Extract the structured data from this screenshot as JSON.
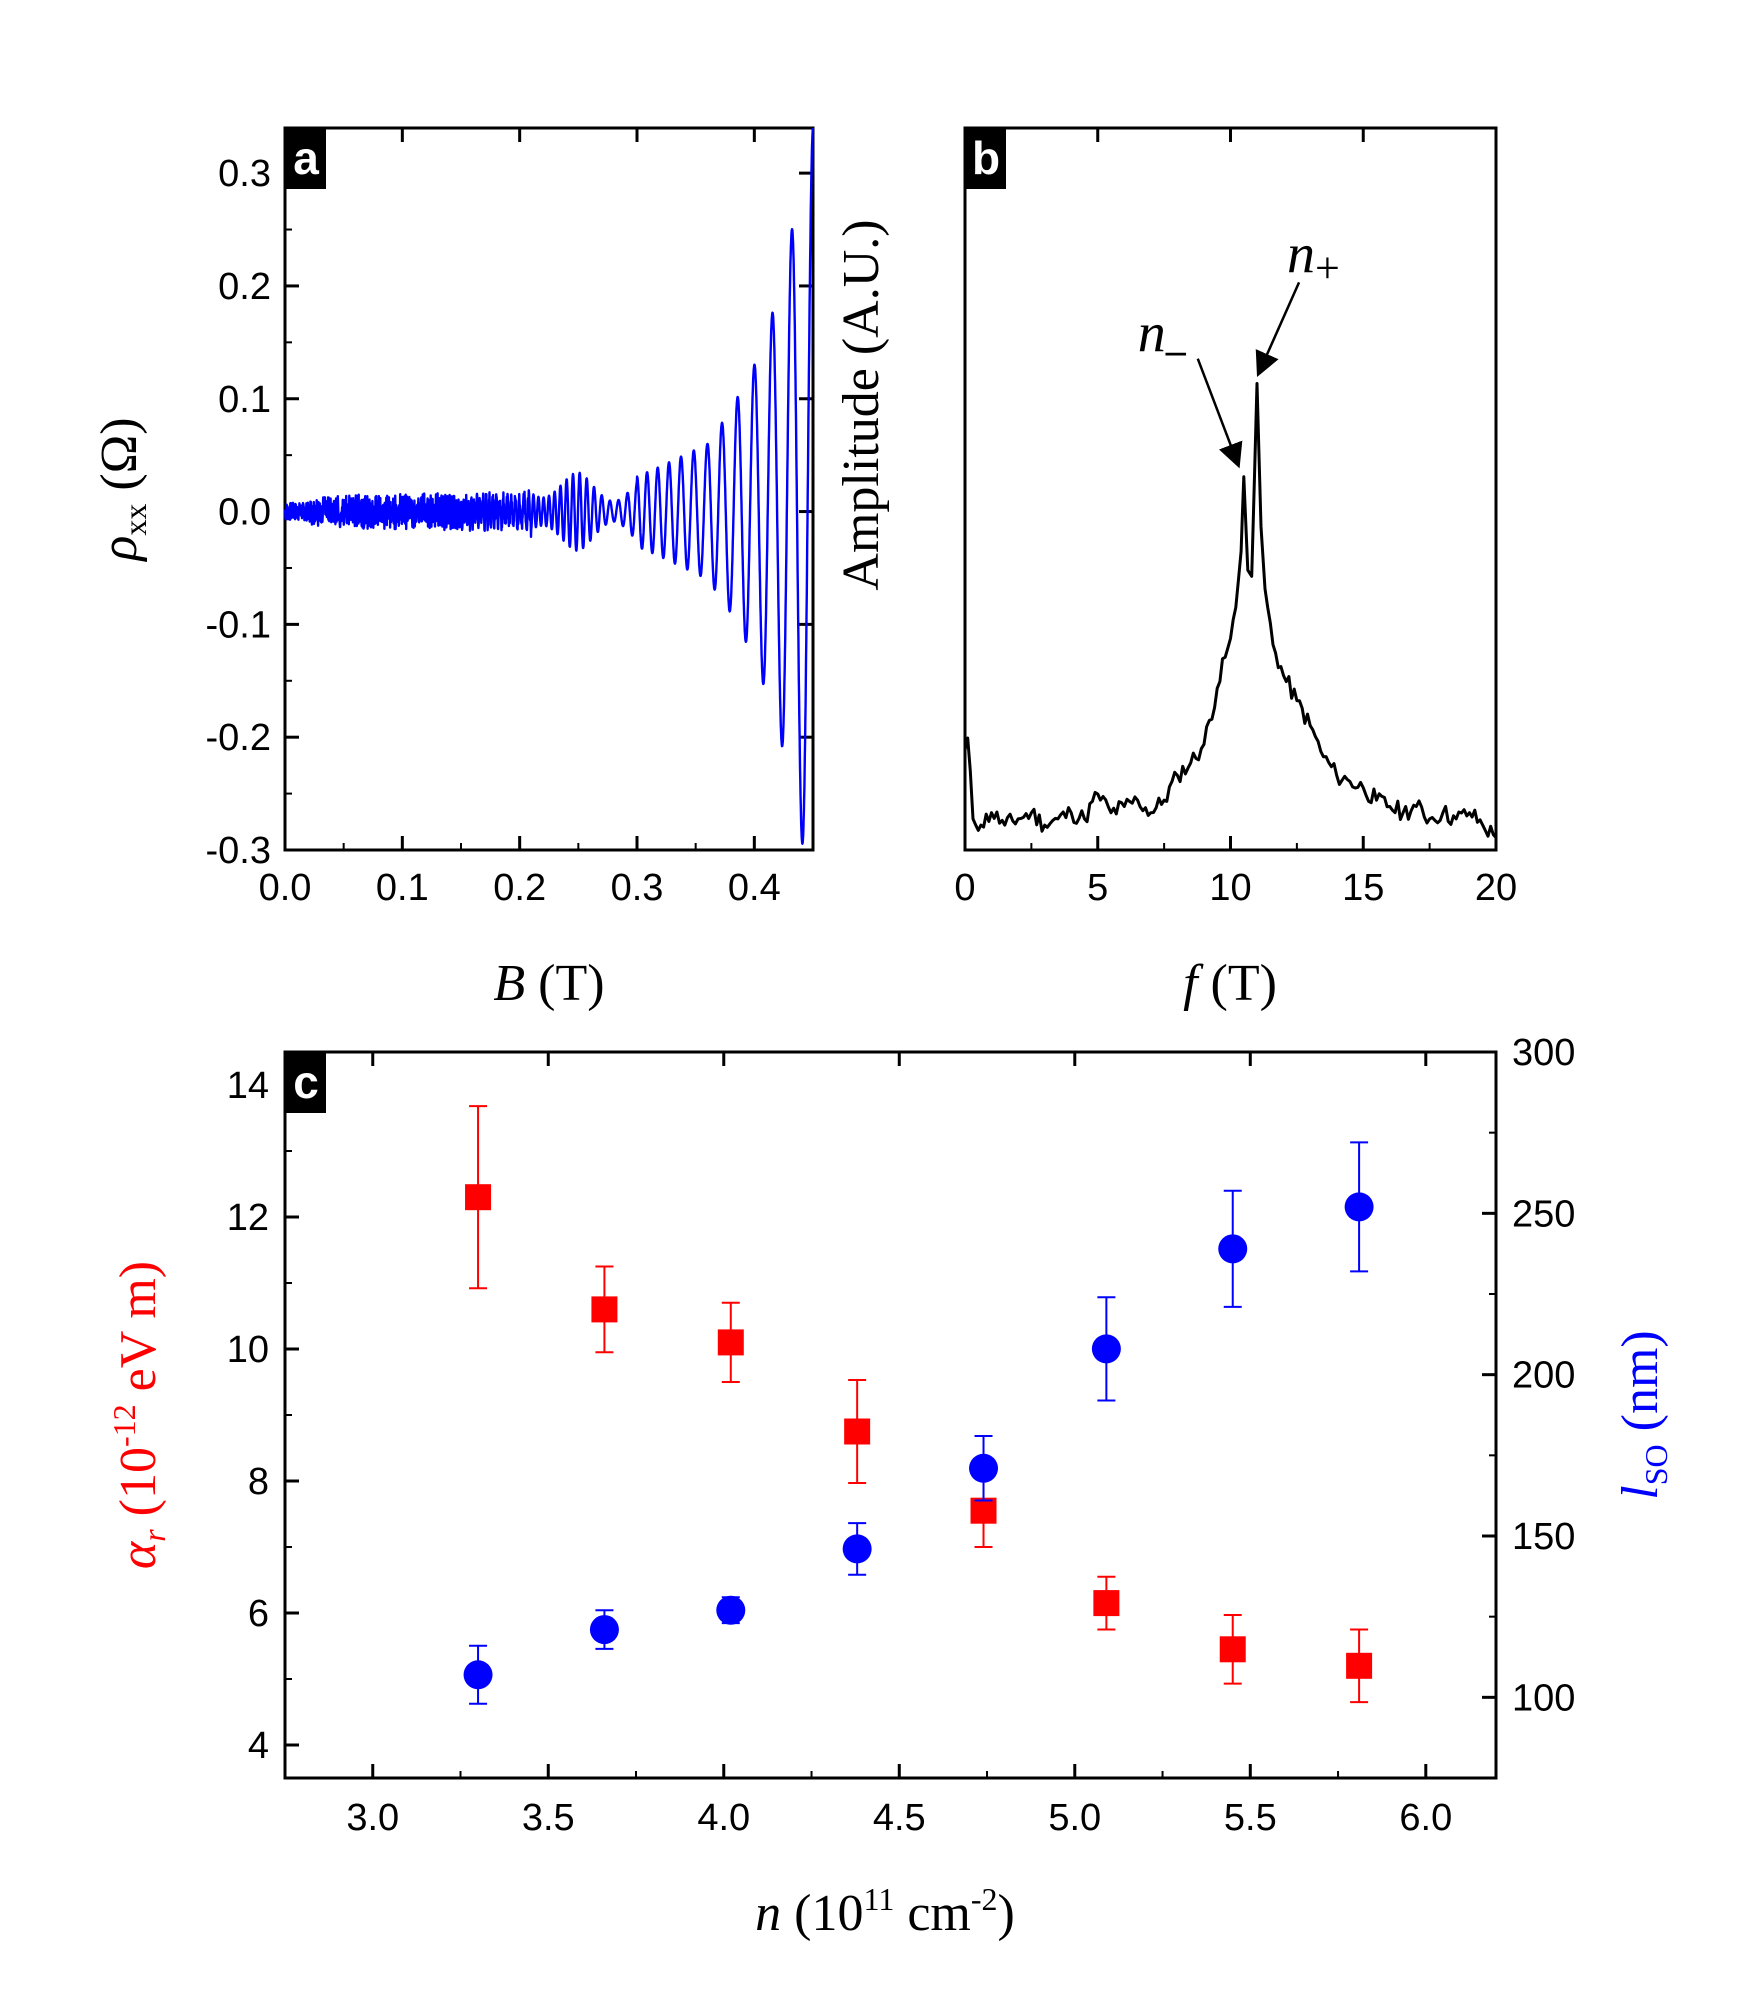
{
  "chart_data": [
    {
      "panel": "a",
      "type": "line",
      "xlabel_symbol": "B",
      "xlabel_unit": "(T)",
      "ylabel_symbol": "ρ",
      "ylabel_sub": "xx",
      "ylabel_unit": "(Ω)",
      "xlim": [
        0.0,
        0.45
      ],
      "ylim": [
        -0.3,
        0.34
      ],
      "xticks": [
        0.0,
        0.1,
        0.2,
        0.3,
        0.4
      ],
      "xtick_labels": [
        "0.0",
        "0.1",
        "0.2",
        "0.3",
        "0.4"
      ],
      "yticks": [
        -0.3,
        -0.2,
        -0.1,
        0.0,
        0.1,
        0.2,
        0.3
      ],
      "ytick_labels": [
        "-0.3",
        "-0.2",
        "-0.1",
        "0.0",
        "0.1",
        "0.2",
        "0.3"
      ],
      "series": [
        {
          "name": "rho_xx",
          "color": "#0000ff",
          "envelope": [
            [
              0.0,
              0.008
            ],
            [
              0.2,
              0.012
            ],
            [
              0.21,
              0.03
            ],
            [
              0.25,
              0.035
            ],
            [
              0.28,
              0.022
            ],
            [
              0.32,
              0.04
            ],
            [
              0.36,
              0.06
            ],
            [
              0.38,
              0.09
            ],
            [
              0.4,
              0.13
            ],
            [
              0.42,
              0.19
            ],
            [
              0.43,
              0.24
            ],
            [
              0.44,
              0.29
            ],
            [
              0.45,
              0.34
            ]
          ],
          "oscillation_frequency_T": 10.8
        }
      ]
    },
    {
      "panel": "b",
      "type": "line",
      "xlabel_symbol": "f",
      "xlabel_unit": "(T)",
      "ylabel": "Amplitude (A.U.)",
      "xlim": [
        0,
        20
      ],
      "ylim": [
        0,
        1
      ],
      "xticks": [
        0,
        5,
        10,
        15,
        20
      ],
      "xtick_labels": [
        "0",
        "5",
        "10",
        "15",
        "20"
      ],
      "annotations": [
        {
          "label": "n",
          "subscript": "–",
          "target_x": 10.5,
          "target_y": 0.605
        },
        {
          "label": "n",
          "subscript": "+",
          "target_x": 11.0,
          "target_y": 0.755
        }
      ],
      "series": [
        {
          "name": "FFT amplitude",
          "color": "#000000",
          "x": [
            0.0,
            0.1,
            0.3,
            0.6,
            1.0,
            1.5,
            2.0,
            2.5,
            3.0,
            3.5,
            4.0,
            4.5,
            5.0,
            5.5,
            6.0,
            6.5,
            7.0,
            7.5,
            8.0,
            8.5,
            9.0,
            9.5,
            9.8,
            10.0,
            10.2,
            10.4,
            10.5,
            10.65,
            10.8,
            11.0,
            11.15,
            11.3,
            11.6,
            12.0,
            12.5,
            13.0,
            13.5,
            14.0,
            14.5,
            15.0,
            15.5,
            16.0,
            16.5,
            17.0,
            17.5,
            18.0,
            18.5,
            19.0,
            19.5,
            20.0
          ],
          "values": [
            0.16,
            0.18,
            0.05,
            0.04,
            0.06,
            0.04,
            0.05,
            0.06,
            0.04,
            0.05,
            0.06,
            0.05,
            0.09,
            0.06,
            0.07,
            0.08,
            0.06,
            0.08,
            0.12,
            0.14,
            0.17,
            0.26,
            0.31,
            0.34,
            0.39,
            0.48,
            0.6,
            0.45,
            0.44,
            0.75,
            0.52,
            0.42,
            0.33,
            0.28,
            0.24,
            0.2,
            0.15,
            0.12,
            0.11,
            0.1,
            0.08,
            0.07,
            0.06,
            0.07,
            0.05,
            0.06,
            0.05,
            0.06,
            0.04,
            0.02
          ]
        }
      ]
    },
    {
      "panel": "c",
      "type": "scatter",
      "xlabel_symbol": "n",
      "xlabel_unit": "(10",
      "xlabel_exp": "11",
      "xlabel_unit2": "cm",
      "xlabel_exp2": "-2",
      "xlabel_close": ")",
      "ylabel_left_symbol": "α",
      "ylabel_left_sub": "r",
      "ylabel_left_unit": "(10",
      "ylabel_left_exp": "-12",
      "ylabel_left_unit2": "eV m)",
      "ylabel_right_symbol": "l",
      "ylabel_right_sub": "SO",
      "ylabel_right_unit": "(nm)",
      "xlim": [
        2.75,
        6.2
      ],
      "ylim_left": [
        3.5,
        14.5
      ],
      "ylim_right": [
        75,
        300
      ],
      "xticks": [
        3.0,
        3.5,
        4.0,
        4.5,
        5.0,
        5.5,
        6.0
      ],
      "xtick_labels": [
        "3.0",
        "3.5",
        "4.0",
        "4.5",
        "5.0",
        "5.5",
        "6.0"
      ],
      "yticks_left": [
        4,
        6,
        8,
        10,
        12,
        14
      ],
      "ytick_labels_left": [
        "4",
        "6",
        "8",
        "10",
        "12",
        "14"
      ],
      "yticks_right": [
        100,
        150,
        200,
        250,
        300
      ],
      "ytick_labels_right": [
        "100",
        "150",
        "200",
        "250",
        "300"
      ],
      "series": [
        {
          "name": "alpha_r",
          "axis": "left",
          "marker": "square",
          "color": "#ff0000",
          "x": [
            3.3,
            3.66,
            4.02,
            4.38,
            4.74,
            5.09,
            5.45,
            5.81
          ],
          "values": [
            12.3,
            10.6,
            10.1,
            8.75,
            7.55,
            6.15,
            5.45,
            5.2
          ],
          "err": [
            1.38,
            0.65,
            0.6,
            0.78,
            0.55,
            0.4,
            0.52,
            0.55
          ]
        },
        {
          "name": "l_SO",
          "axis": "right",
          "marker": "circle",
          "color": "#0000ff",
          "x": [
            3.3,
            3.66,
            4.02,
            4.38,
            4.74,
            5.09,
            5.45,
            5.81
          ],
          "values": [
            107,
            121,
            127,
            146,
            171,
            208,
            239,
            252
          ],
          "err": [
            9,
            6,
            4,
            8,
            10,
            16,
            18,
            20
          ]
        }
      ]
    }
  ]
}
